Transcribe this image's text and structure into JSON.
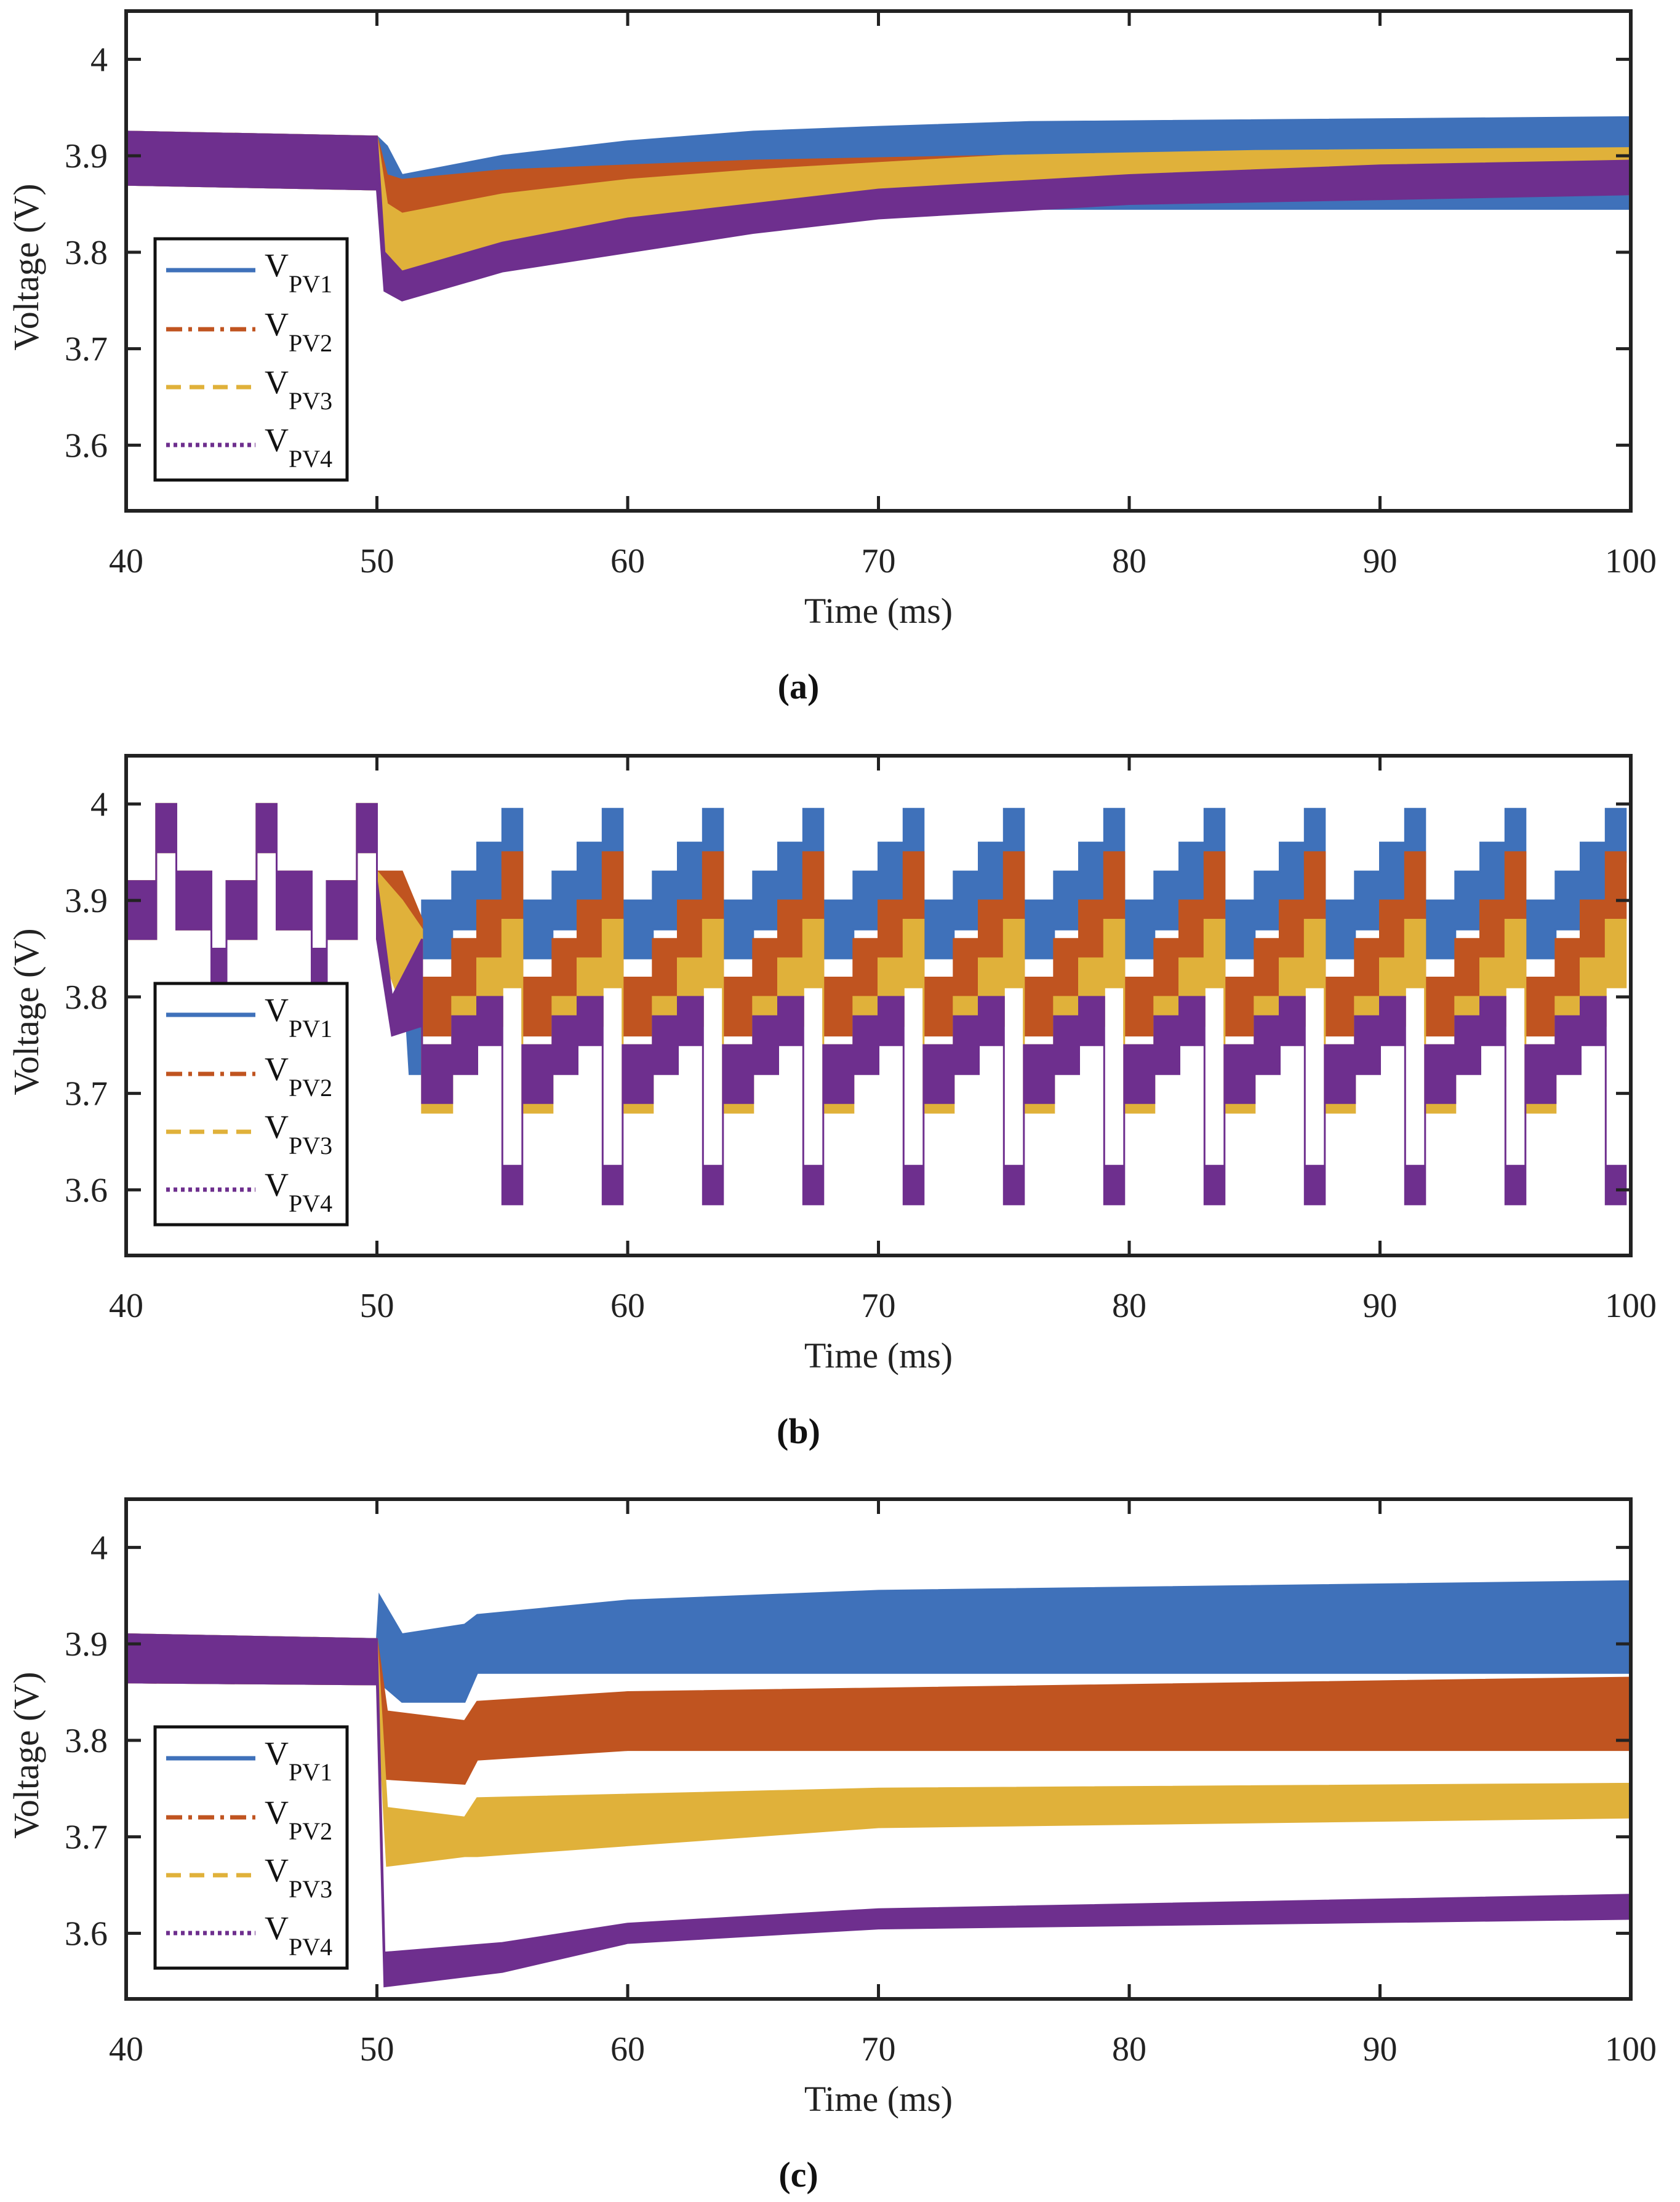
{
  "chart_data": [
    {
      "type": "area",
      "caption": "(a)",
      "xlabel": "Time (ms)",
      "ylabel": "Voltage (V)",
      "xlim": [
        40,
        100
      ],
      "ylim": [
        3.532,
        4.05
      ],
      "xticks": [
        40,
        50,
        60,
        70,
        80,
        90,
        100
      ],
      "yticks": [
        3.6,
        3.7,
        3.8,
        3.9,
        4
      ],
      "legend_position": "middle-left",
      "series": [
        {
          "name": "V",
          "sub": "PV1",
          "style": "solid",
          "color": "#3f71ba",
          "envelope": [
            [
              40,
              3.87,
              3.925
            ],
            [
              50,
              3.865,
              3.92
            ],
            [
              50.4,
              3.87,
              3.91
            ],
            [
              51,
              3.865,
              3.88
            ],
            [
              55,
              3.87,
              3.9
            ],
            [
              60,
              3.865,
              3.915
            ],
            [
              65,
              3.855,
              3.925
            ],
            [
              70,
              3.85,
              3.93
            ],
            [
              76,
              3.845,
              3.935
            ],
            [
              100,
              3.845,
              3.94
            ]
          ]
        },
        {
          "name": "V",
          "sub": "PV2",
          "style": "dash-dot",
          "color": "#c05420",
          "envelope": [
            [
              40,
              3.87,
              3.925
            ],
            [
              50,
              3.865,
              3.92
            ],
            [
              50.4,
              3.835,
              3.88
            ],
            [
              51,
              3.83,
              3.875
            ],
            [
              55,
              3.845,
              3.885
            ],
            [
              60,
              3.85,
              3.89
            ],
            [
              65,
              3.855,
              3.895
            ],
            [
              75,
              3.858,
              3.9
            ],
            [
              100,
              3.862,
              3.905
            ]
          ]
        },
        {
          "name": "V",
          "sub": "PV3",
          "style": "dashed",
          "color": "#e0b13a",
          "envelope": [
            [
              40,
              3.87,
              3.925
            ],
            [
              50,
              3.865,
              3.92
            ],
            [
              50.4,
              3.79,
              3.85
            ],
            [
              51,
              3.78,
              3.84
            ],
            [
              55,
              3.8,
              3.86
            ],
            [
              60,
              3.82,
              3.875
            ],
            [
              65,
              3.835,
              3.885
            ],
            [
              75,
              3.848,
              3.9
            ],
            [
              85,
              3.856,
              3.905
            ],
            [
              100,
              3.86,
              3.908
            ]
          ]
        },
        {
          "name": "V",
          "sub": "PV4",
          "style": "dotted",
          "color": "#6e2f8e",
          "envelope": [
            [
              40,
              3.87,
              3.925
            ],
            [
              50,
              3.865,
              3.92
            ],
            [
              50.3,
              3.76,
              3.8
            ],
            [
              51,
              3.75,
              3.78
            ],
            [
              55,
              3.78,
              3.81
            ],
            [
              60,
              3.8,
              3.835
            ],
            [
              65,
              3.82,
              3.85
            ],
            [
              70,
              3.835,
              3.865
            ],
            [
              80,
              3.85,
              3.88
            ],
            [
              90,
              3.855,
              3.89
            ],
            [
              100,
              3.86,
              3.895
            ]
          ]
        }
      ]
    },
    {
      "type": "area",
      "caption": "(b)",
      "xlabel": "Time (ms)",
      "ylabel": "Voltage (V)",
      "xlim": [
        40,
        100
      ],
      "ylim": [
        3.532,
        4.05
      ],
      "xticks": [
        40,
        50,
        60,
        70,
        80,
        90,
        100
      ],
      "yticks": [
        3.6,
        3.7,
        3.8,
        3.9,
        4
      ],
      "legend_position": "middle-left",
      "period_ms": 4,
      "pre_cycle_starts": [
        40,
        44,
        48
      ],
      "pre_template": [
        [
          0,
          1.2,
          3.86,
          3.92
        ],
        [
          1.2,
          2.0,
          3.95,
          4.0
        ],
        [
          2.0,
          3.4,
          3.87,
          3.93
        ],
        [
          3.4,
          4.0,
          3.8,
          3.85
        ]
      ],
      "cycle_starts": [
        51.8,
        55.8,
        59.8,
        63.8,
        67.8,
        71.8,
        75.8,
        79.8,
        83.8,
        87.8,
        91.8,
        95.8
      ],
      "series": [
        {
          "name": "V",
          "sub": "PV1",
          "style": "solid",
          "color": "#3f71ba",
          "transition": [
            [
              50,
              3.86,
              3.93
            ],
            [
              51,
              3.85,
              3.9
            ],
            [
              51.3,
              3.72,
              3.81
            ],
            [
              51.8,
              3.72,
              3.81
            ]
          ],
          "template": [
            [
              0,
              1.2,
              3.84,
              3.9
            ],
            [
              1.2,
              2.2,
              3.87,
              3.93
            ],
            [
              2.2,
              3.2,
              3.9,
              3.96
            ],
            [
              3.2,
              4,
              3.94,
              3.995
            ]
          ]
        },
        {
          "name": "V",
          "sub": "PV2",
          "style": "dash-dot",
          "color": "#c05420",
          "transition": [
            [
              50,
              3.86,
              3.93
            ],
            [
              51,
              3.84,
              3.93
            ],
            [
              51.8,
              3.8,
              3.88
            ]
          ],
          "template": [
            [
              0,
              1.2,
              3.76,
              3.82
            ],
            [
              1.2,
              2.2,
              3.8,
              3.86
            ],
            [
              2.2,
              3.2,
              3.84,
              3.9
            ],
            [
              3.2,
              4,
              3.88,
              3.95
            ]
          ]
        },
        {
          "name": "V",
          "sub": "PV3",
          "style": "dashed",
          "color": "#e0b13a",
          "transition": [
            [
              50,
              3.86,
              3.93
            ],
            [
              51,
              3.79,
              3.9
            ],
            [
              51.8,
              3.8,
              3.87
            ]
          ],
          "template": [
            [
              0,
              1.2,
              3.68,
              3.75
            ],
            [
              1.2,
              2.2,
              3.73,
              3.8
            ],
            [
              2.2,
              3.2,
              3.77,
              3.84
            ],
            [
              3.2,
              4,
              3.81,
              3.88
            ]
          ]
        },
        {
          "name": "V",
          "sub": "PV4",
          "style": "dotted",
          "color": "#6e2f8e",
          "transition": [
            [
              50,
              3.86,
              3.92
            ],
            [
              50.6,
              3.76,
              3.8
            ],
            [
              51.8,
              3.77,
              3.86
            ]
          ],
          "template": [
            [
              0,
              1.2,
              3.69,
              3.75
            ],
            [
              1.2,
              2.2,
              3.72,
              3.78
            ],
            [
              2.2,
              3.2,
              3.75,
              3.8
            ],
            [
              3.2,
              4,
              3.585,
              3.625
            ]
          ]
        }
      ]
    },
    {
      "type": "area",
      "caption": "(c)",
      "xlabel": "Time (ms)",
      "ylabel": "Voltage (V)",
      "xlim": [
        40,
        100
      ],
      "ylim": [
        3.532,
        4.05
      ],
      "xticks": [
        40,
        50,
        60,
        70,
        80,
        90,
        100
      ],
      "yticks": [
        3.6,
        3.7,
        3.8,
        3.9,
        4
      ],
      "legend_position": "middle-left",
      "series": [
        {
          "name": "V",
          "sub": "PV1",
          "style": "solid",
          "color": "#3f71ba",
          "envelope": [
            [
              40,
              3.86,
              3.91
            ],
            [
              50,
              3.858,
              3.905
            ],
            [
              50.1,
              3.86,
              3.95
            ],
            [
              51,
              3.84,
              3.91
            ],
            [
              53.5,
              3.84,
              3.92
            ],
            [
              54,
              3.87,
              3.93
            ],
            [
              60,
              3.87,
              3.945
            ],
            [
              70,
              3.87,
              3.955
            ],
            [
              100,
              3.87,
              3.965
            ]
          ]
        },
        {
          "name": "V",
          "sub": "PV2",
          "style": "dash-dot",
          "color": "#c05420",
          "envelope": [
            [
              40,
              3.86,
              3.91
            ],
            [
              50,
              3.858,
              3.905
            ],
            [
              50.4,
              3.76,
              3.83
            ],
            [
              53.5,
              3.755,
              3.82
            ],
            [
              54,
              3.78,
              3.84
            ],
            [
              60,
              3.79,
              3.85
            ],
            [
              100,
              3.79,
              3.865
            ]
          ]
        },
        {
          "name": "V",
          "sub": "PV3",
          "style": "dashed",
          "color": "#e0b13a",
          "envelope": [
            [
              40,
              3.86,
              3.91
            ],
            [
              50,
              3.858,
              3.905
            ],
            [
              50.4,
              3.67,
              3.73
            ],
            [
              53.5,
              3.68,
              3.72
            ],
            [
              54,
              3.68,
              3.74
            ],
            [
              70,
              3.71,
              3.75
            ],
            [
              100,
              3.72,
              3.755
            ]
          ]
        },
        {
          "name": "V",
          "sub": "PV4",
          "style": "dotted",
          "color": "#6e2f8e",
          "envelope": [
            [
              40,
              3.86,
              3.91
            ],
            [
              50,
              3.858,
              3.905
            ],
            [
              50.3,
              3.545,
              3.58
            ],
            [
              55,
              3.56,
              3.59
            ],
            [
              60,
              3.59,
              3.61
            ],
            [
              70,
              3.605,
              3.625
            ],
            [
              100,
              3.615,
              3.64
            ]
          ]
        }
      ]
    }
  ]
}
